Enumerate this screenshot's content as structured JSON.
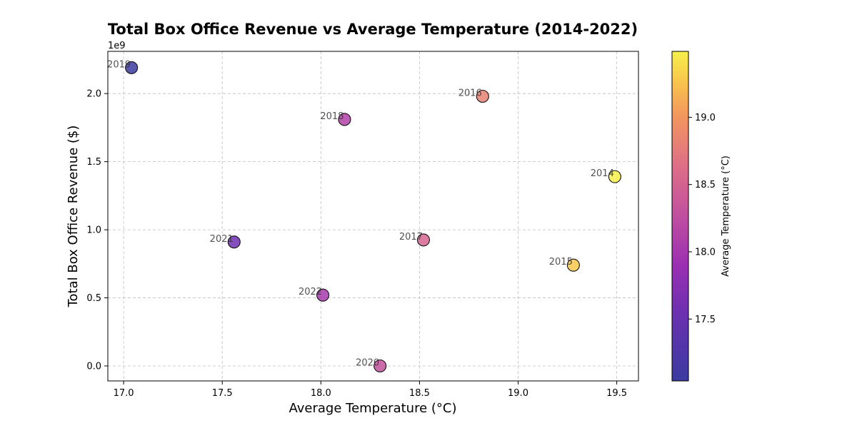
{
  "chart_data": {
    "type": "scatter",
    "title": "Total Box Office Revenue vs Average Temperature (2014-2022)",
    "xlabel": "Average Temperature (°C)",
    "ylabel": "Total Box Office Revenue ($)",
    "y_offset_label": "1e9",
    "xlim": [
      16.92,
      19.61
    ],
    "ylim": [
      -0.11,
      2.31
    ],
    "y_scale_factor": 1000000000,
    "x_ticks": [
      17.0,
      17.5,
      18.0,
      18.5,
      19.0,
      19.5
    ],
    "x_tick_labels": [
      "17.0",
      "17.5",
      "18.0",
      "18.5",
      "19.0",
      "19.5"
    ],
    "y_ticks": [
      0.0,
      0.5,
      1.0,
      1.5,
      2.0
    ],
    "y_tick_labels": [
      "0.0",
      "0.5",
      "1.0",
      "1.5",
      "2.0"
    ],
    "grid": true,
    "colormap": "plasma",
    "points": [
      {
        "label": "2014",
        "x": 19.49,
        "y": 1.39
      },
      {
        "label": "2015",
        "x": 19.28,
        "y": 0.74
      },
      {
        "label": "2016",
        "x": 18.82,
        "y": 1.98
      },
      {
        "label": "2017",
        "x": 18.52,
        "y": 0.925
      },
      {
        "label": "2018",
        "x": 18.12,
        "y": 1.81
      },
      {
        "label": "2019",
        "x": 17.04,
        "y": 2.19
      },
      {
        "label": "2020",
        "x": 18.3,
        "y": 0.0
      },
      {
        "label": "2021",
        "x": 17.56,
        "y": 0.91
      },
      {
        "label": "2022",
        "x": 18.01,
        "y": 0.52
      }
    ],
    "colorbar": {
      "label": "Average Temperature (°C)",
      "range": [
        17.04,
        19.49
      ],
      "ticks": [
        17.5,
        18.0,
        18.5,
        19.0
      ],
      "tick_labels": [
        "17.5",
        "18.0",
        "18.5",
        "19.0"
      ]
    }
  }
}
